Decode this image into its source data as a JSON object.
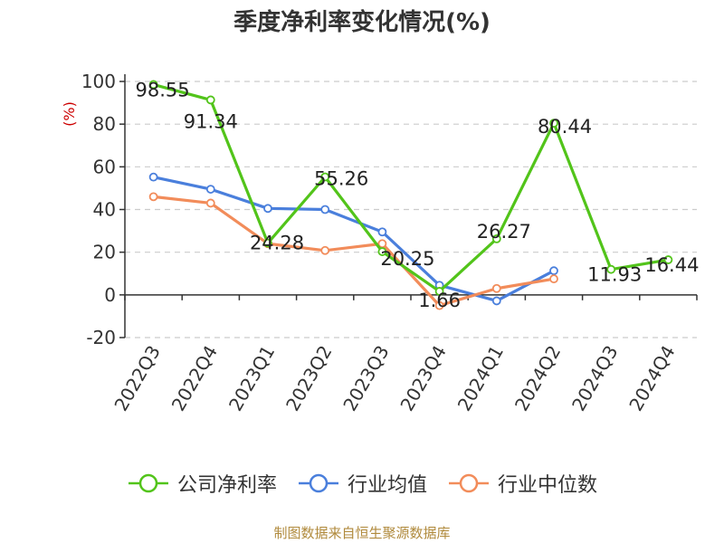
{
  "title": "季度净利率变化情况(%)",
  "source": "制图数据来自恒生聚源数据库",
  "chart_data": {
    "type": "line",
    "title": "季度净利率变化情况(%)",
    "ylabel": "(%)",
    "xlabel": "",
    "ylim": [
      -20,
      100
    ],
    "yticks": [
      -20,
      0,
      20,
      40,
      60,
      80,
      100
    ],
    "grid": true,
    "legend_position": "bottom",
    "categories": [
      "2022Q3",
      "2022Q4",
      "2023Q1",
      "2023Q2",
      "2023Q3",
      "2023Q4",
      "2024Q1",
      "2024Q2",
      "2024Q3",
      "2024Q4"
    ],
    "series": [
      {
        "name": "公司净利率",
        "color": "#52c41a",
        "values": [
          98.55,
          91.34,
          24.28,
          55.26,
          20.25,
          1.66,
          26.27,
          80.44,
          11.93,
          16.44
        ],
        "labels": [
          "98.55",
          "91.34",
          "24.28",
          "55.26",
          "20.25",
          "1.66",
          "26.27",
          "80.44",
          "11.93",
          "16.44"
        ]
      },
      {
        "name": "行业均值",
        "color": "#4a7fdc",
        "values": [
          55.2,
          49.5,
          40.5,
          40.0,
          29.5,
          4.5,
          -2.8,
          11.3,
          null,
          null
        ]
      },
      {
        "name": "行业中位数",
        "color": "#f28c5a",
        "values": [
          46.0,
          43.0,
          24.0,
          20.8,
          24.0,
          -5.0,
          3.0,
          7.5,
          null,
          null
        ]
      }
    ]
  }
}
